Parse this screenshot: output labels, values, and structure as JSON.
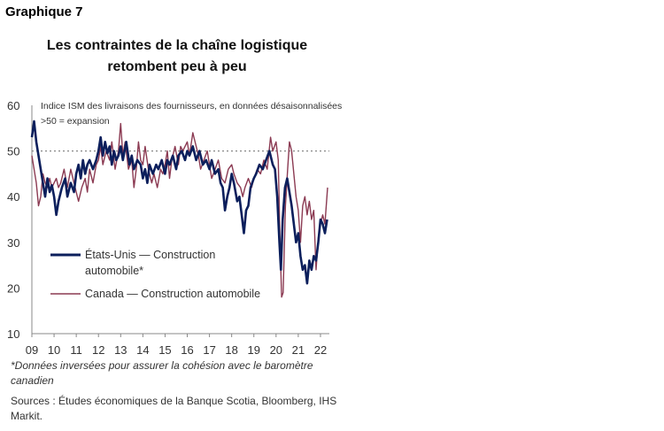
{
  "graph_label": "Graphique 7",
  "title_line1": "Les contraintes de la chaîne logistique",
  "title_line2": "retombent peu à peu",
  "note_asterisk": "*Données inversées pour assurer la cohésion avec le baromètre canadien",
  "sources": "Sources : Études économiques de la Banque Scotia, Bloomberg, IHS Markit.",
  "colors": {
    "us": "#0c1f5c",
    "canada": "#8b3a52",
    "reference": "#888888"
  },
  "chart_data": {
    "type": "line",
    "subtitle_line1": "Indice ISM des livraisons des fournisseurs, en données désaisonnalisées",
    "subtitle_line2": ">50 = expansion",
    "ylim": [
      10,
      60
    ],
    "y_ticks": [
      "10",
      "20",
      "30",
      "40",
      "50",
      "60"
    ],
    "x_ticks": [
      {
        "label": "09",
        "x": 2009.0
      },
      {
        "label": "10",
        "x": 2010.0
      },
      {
        "label": "11",
        "x": 2011.0
      },
      {
        "label": "12",
        "x": 2012.0
      },
      {
        "label": "13",
        "x": 2013.0
      },
      {
        "label": "14",
        "x": 2014.0
      },
      {
        "label": "15",
        "x": 2015.0
      },
      {
        "label": "16",
        "x": 2016.0
      },
      {
        "label": "17",
        "x": 2017.0
      },
      {
        "label": "18",
        "x": 2018.0
      },
      {
        "label": "19",
        "x": 2019.0
      },
      {
        "label": "20",
        "x": 2020.0
      },
      {
        "label": "21",
        "x": 2021.0
      },
      {
        "label": "22",
        "x": 2022.0
      }
    ],
    "xlim": [
      2009.0,
      2022.4
    ],
    "reference_line": 50,
    "legend_placement": "lower-left",
    "series": [
      {
        "name": "États-Unis — Construction automobile*",
        "name_line1": "États-Unis — Construction",
        "name_line2": "automobile*",
        "color": "#0c1f5c",
        "points": [
          [
            2009.0,
            53
          ],
          [
            2009.1,
            56.5
          ],
          [
            2009.2,
            52
          ],
          [
            2009.3,
            49
          ],
          [
            2009.4,
            46
          ],
          [
            2009.5,
            43
          ],
          [
            2009.6,
            40
          ],
          [
            2009.7,
            44
          ],
          [
            2009.8,
            41
          ],
          [
            2009.9,
            42.5
          ],
          [
            2010.0,
            40
          ],
          [
            2010.1,
            36
          ],
          [
            2010.2,
            39
          ],
          [
            2010.35,
            42
          ],
          [
            2010.5,
            44
          ],
          [
            2010.6,
            40
          ],
          [
            2010.75,
            43
          ],
          [
            2010.9,
            41
          ],
          [
            2011.0,
            45
          ],
          [
            2011.1,
            47
          ],
          [
            2011.2,
            44
          ],
          [
            2011.3,
            48
          ],
          [
            2011.4,
            45
          ],
          [
            2011.5,
            47
          ],
          [
            2011.6,
            48
          ],
          [
            2011.75,
            46
          ],
          [
            2011.9,
            48
          ],
          [
            2012.0,
            50
          ],
          [
            2012.1,
            53
          ],
          [
            2012.2,
            49
          ],
          [
            2012.3,
            52
          ],
          [
            2012.4,
            49.5
          ],
          [
            2012.5,
            51
          ],
          [
            2012.6,
            47
          ],
          [
            2012.7,
            50
          ],
          [
            2012.8,
            48
          ],
          [
            2012.9,
            49
          ],
          [
            2013.0,
            51
          ],
          [
            2013.1,
            48
          ],
          [
            2013.25,
            52
          ],
          [
            2013.4,
            47
          ],
          [
            2013.5,
            49
          ],
          [
            2013.6,
            46
          ],
          [
            2013.75,
            48
          ],
          [
            2013.9,
            47
          ],
          [
            2014.0,
            44
          ],
          [
            2014.1,
            46
          ],
          [
            2014.2,
            43
          ],
          [
            2014.3,
            47
          ],
          [
            2014.45,
            45
          ],
          [
            2014.6,
            47
          ],
          [
            2014.7,
            46
          ],
          [
            2014.85,
            48
          ],
          [
            2015.0,
            45
          ],
          [
            2015.1,
            48
          ],
          [
            2015.2,
            47
          ],
          [
            2015.35,
            49
          ],
          [
            2015.5,
            46
          ],
          [
            2015.6,
            49
          ],
          [
            2015.75,
            50
          ],
          [
            2015.9,
            48
          ],
          [
            2016.0,
            50
          ],
          [
            2016.1,
            49
          ],
          [
            2016.25,
            51
          ],
          [
            2016.4,
            48
          ],
          [
            2016.55,
            50
          ],
          [
            2016.7,
            47
          ],
          [
            2016.85,
            48
          ],
          [
            2017.0,
            46
          ],
          [
            2017.1,
            48
          ],
          [
            2017.25,
            45
          ],
          [
            2017.4,
            46
          ],
          [
            2017.5,
            43
          ],
          [
            2017.6,
            42
          ],
          [
            2017.7,
            37
          ],
          [
            2017.8,
            40
          ],
          [
            2017.9,
            42
          ],
          [
            2018.0,
            45
          ],
          [
            2018.1,
            43
          ],
          [
            2018.25,
            39
          ],
          [
            2018.35,
            40
          ],
          [
            2018.45,
            36
          ],
          [
            2018.55,
            32
          ],
          [
            2018.65,
            37
          ],
          [
            2018.75,
            38
          ],
          [
            2018.85,
            42
          ],
          [
            2019.0,
            44
          ],
          [
            2019.1,
            45
          ],
          [
            2019.25,
            47
          ],
          [
            2019.4,
            46
          ],
          [
            2019.55,
            48
          ],
          [
            2019.7,
            50
          ],
          [
            2019.85,
            47
          ],
          [
            2019.95,
            46
          ],
          [
            2020.05,
            40
          ],
          [
            2020.15,
            30
          ],
          [
            2020.22,
            24
          ],
          [
            2020.3,
            35
          ],
          [
            2020.4,
            42
          ],
          [
            2020.5,
            44
          ],
          [
            2020.6,
            41
          ],
          [
            2020.7,
            38
          ],
          [
            2020.8,
            34
          ],
          [
            2020.9,
            30
          ],
          [
            2021.0,
            32
          ],
          [
            2021.1,
            27
          ],
          [
            2021.2,
            24
          ],
          [
            2021.3,
            25
          ],
          [
            2021.4,
            21
          ],
          [
            2021.5,
            26
          ],
          [
            2021.6,
            24
          ],
          [
            2021.7,
            27
          ],
          [
            2021.8,
            26
          ],
          [
            2021.9,
            30
          ],
          [
            2022.0,
            35
          ],
          [
            2022.1,
            34
          ],
          [
            2022.2,
            32
          ],
          [
            2022.3,
            35
          ]
        ]
      },
      {
        "name": "Canada — Construction automobile",
        "color": "#8b3a52",
        "points": [
          [
            2009.0,
            49
          ],
          [
            2009.1,
            46
          ],
          [
            2009.2,
            43
          ],
          [
            2009.3,
            38
          ],
          [
            2009.4,
            40
          ],
          [
            2009.5,
            45
          ],
          [
            2009.6,
            43
          ],
          [
            2009.7,
            42
          ],
          [
            2009.8,
            44
          ],
          [
            2009.9,
            42
          ],
          [
            2010.0,
            43
          ],
          [
            2010.1,
            44
          ],
          [
            2010.2,
            42
          ],
          [
            2010.3,
            43
          ],
          [
            2010.45,
            46
          ],
          [
            2010.6,
            42
          ],
          [
            2010.75,
            46
          ],
          [
            2010.9,
            43
          ],
          [
            2011.0,
            41
          ],
          [
            2011.1,
            39
          ],
          [
            2011.25,
            42
          ],
          [
            2011.4,
            44
          ],
          [
            2011.5,
            41
          ],
          [
            2011.6,
            46
          ],
          [
            2011.75,
            43
          ],
          [
            2011.9,
            47
          ],
          [
            2012.0,
            48
          ],
          [
            2012.1,
            51
          ],
          [
            2012.2,
            47
          ],
          [
            2012.35,
            50
          ],
          [
            2012.5,
            48
          ],
          [
            2012.6,
            52
          ],
          [
            2012.75,
            46
          ],
          [
            2012.9,
            50
          ],
          [
            2013.0,
            56
          ],
          [
            2013.1,
            49
          ],
          [
            2013.2,
            52
          ],
          [
            2013.35,
            46
          ],
          [
            2013.5,
            48
          ],
          [
            2013.6,
            42
          ],
          [
            2013.7,
            46
          ],
          [
            2013.8,
            52
          ],
          [
            2013.9,
            48
          ],
          [
            2014.0,
            47
          ],
          [
            2014.1,
            51
          ],
          [
            2014.25,
            46
          ],
          [
            2014.4,
            43
          ],
          [
            2014.5,
            45
          ],
          [
            2014.65,
            42
          ],
          [
            2014.8,
            46
          ],
          [
            2014.9,
            45
          ],
          [
            2015.0,
            47
          ],
          [
            2015.1,
            50
          ],
          [
            2015.2,
            44
          ],
          [
            2015.3,
            48
          ],
          [
            2015.45,
            51
          ],
          [
            2015.6,
            47
          ],
          [
            2015.7,
            51
          ],
          [
            2015.8,
            50
          ],
          [
            2016.0,
            52
          ],
          [
            2016.1,
            49
          ],
          [
            2016.25,
            54
          ],
          [
            2016.4,
            51
          ],
          [
            2016.5,
            49
          ],
          [
            2016.6,
            46
          ],
          [
            2016.75,
            48
          ],
          [
            2016.9,
            50
          ],
          [
            2017.0,
            47
          ],
          [
            2017.1,
            44
          ],
          [
            2017.25,
            46
          ],
          [
            2017.4,
            48
          ],
          [
            2017.55,
            44
          ],
          [
            2017.7,
            43
          ],
          [
            2017.85,
            46
          ],
          [
            2018.0,
            47
          ],
          [
            2018.1,
            45
          ],
          [
            2018.25,
            43
          ],
          [
            2018.4,
            42
          ],
          [
            2018.5,
            40
          ],
          [
            2018.6,
            42
          ],
          [
            2018.75,
            44
          ],
          [
            2018.9,
            42
          ],
          [
            2019.0,
            44
          ],
          [
            2019.15,
            46
          ],
          [
            2019.3,
            45
          ],
          [
            2019.45,
            48
          ],
          [
            2019.6,
            46
          ],
          [
            2019.75,
            53
          ],
          [
            2019.85,
            50
          ],
          [
            2020.0,
            52
          ],
          [
            2020.1,
            48
          ],
          [
            2020.18,
            30
          ],
          [
            2020.25,
            18
          ],
          [
            2020.32,
            19
          ],
          [
            2020.42,
            38
          ],
          [
            2020.52,
            46
          ],
          [
            2020.6,
            52
          ],
          [
            2020.7,
            50
          ],
          [
            2020.8,
            45
          ],
          [
            2020.9,
            40
          ],
          [
            2021.0,
            37
          ],
          [
            2021.1,
            30
          ],
          [
            2021.2,
            38
          ],
          [
            2021.3,
            40
          ],
          [
            2021.4,
            36
          ],
          [
            2021.5,
            39
          ],
          [
            2021.6,
            35
          ],
          [
            2021.7,
            37
          ],
          [
            2021.8,
            24
          ],
          [
            2021.9,
            31
          ],
          [
            2022.0,
            34
          ],
          [
            2022.1,
            36
          ],
          [
            2022.2,
            34
          ],
          [
            2022.32,
            42
          ]
        ]
      }
    ]
  }
}
